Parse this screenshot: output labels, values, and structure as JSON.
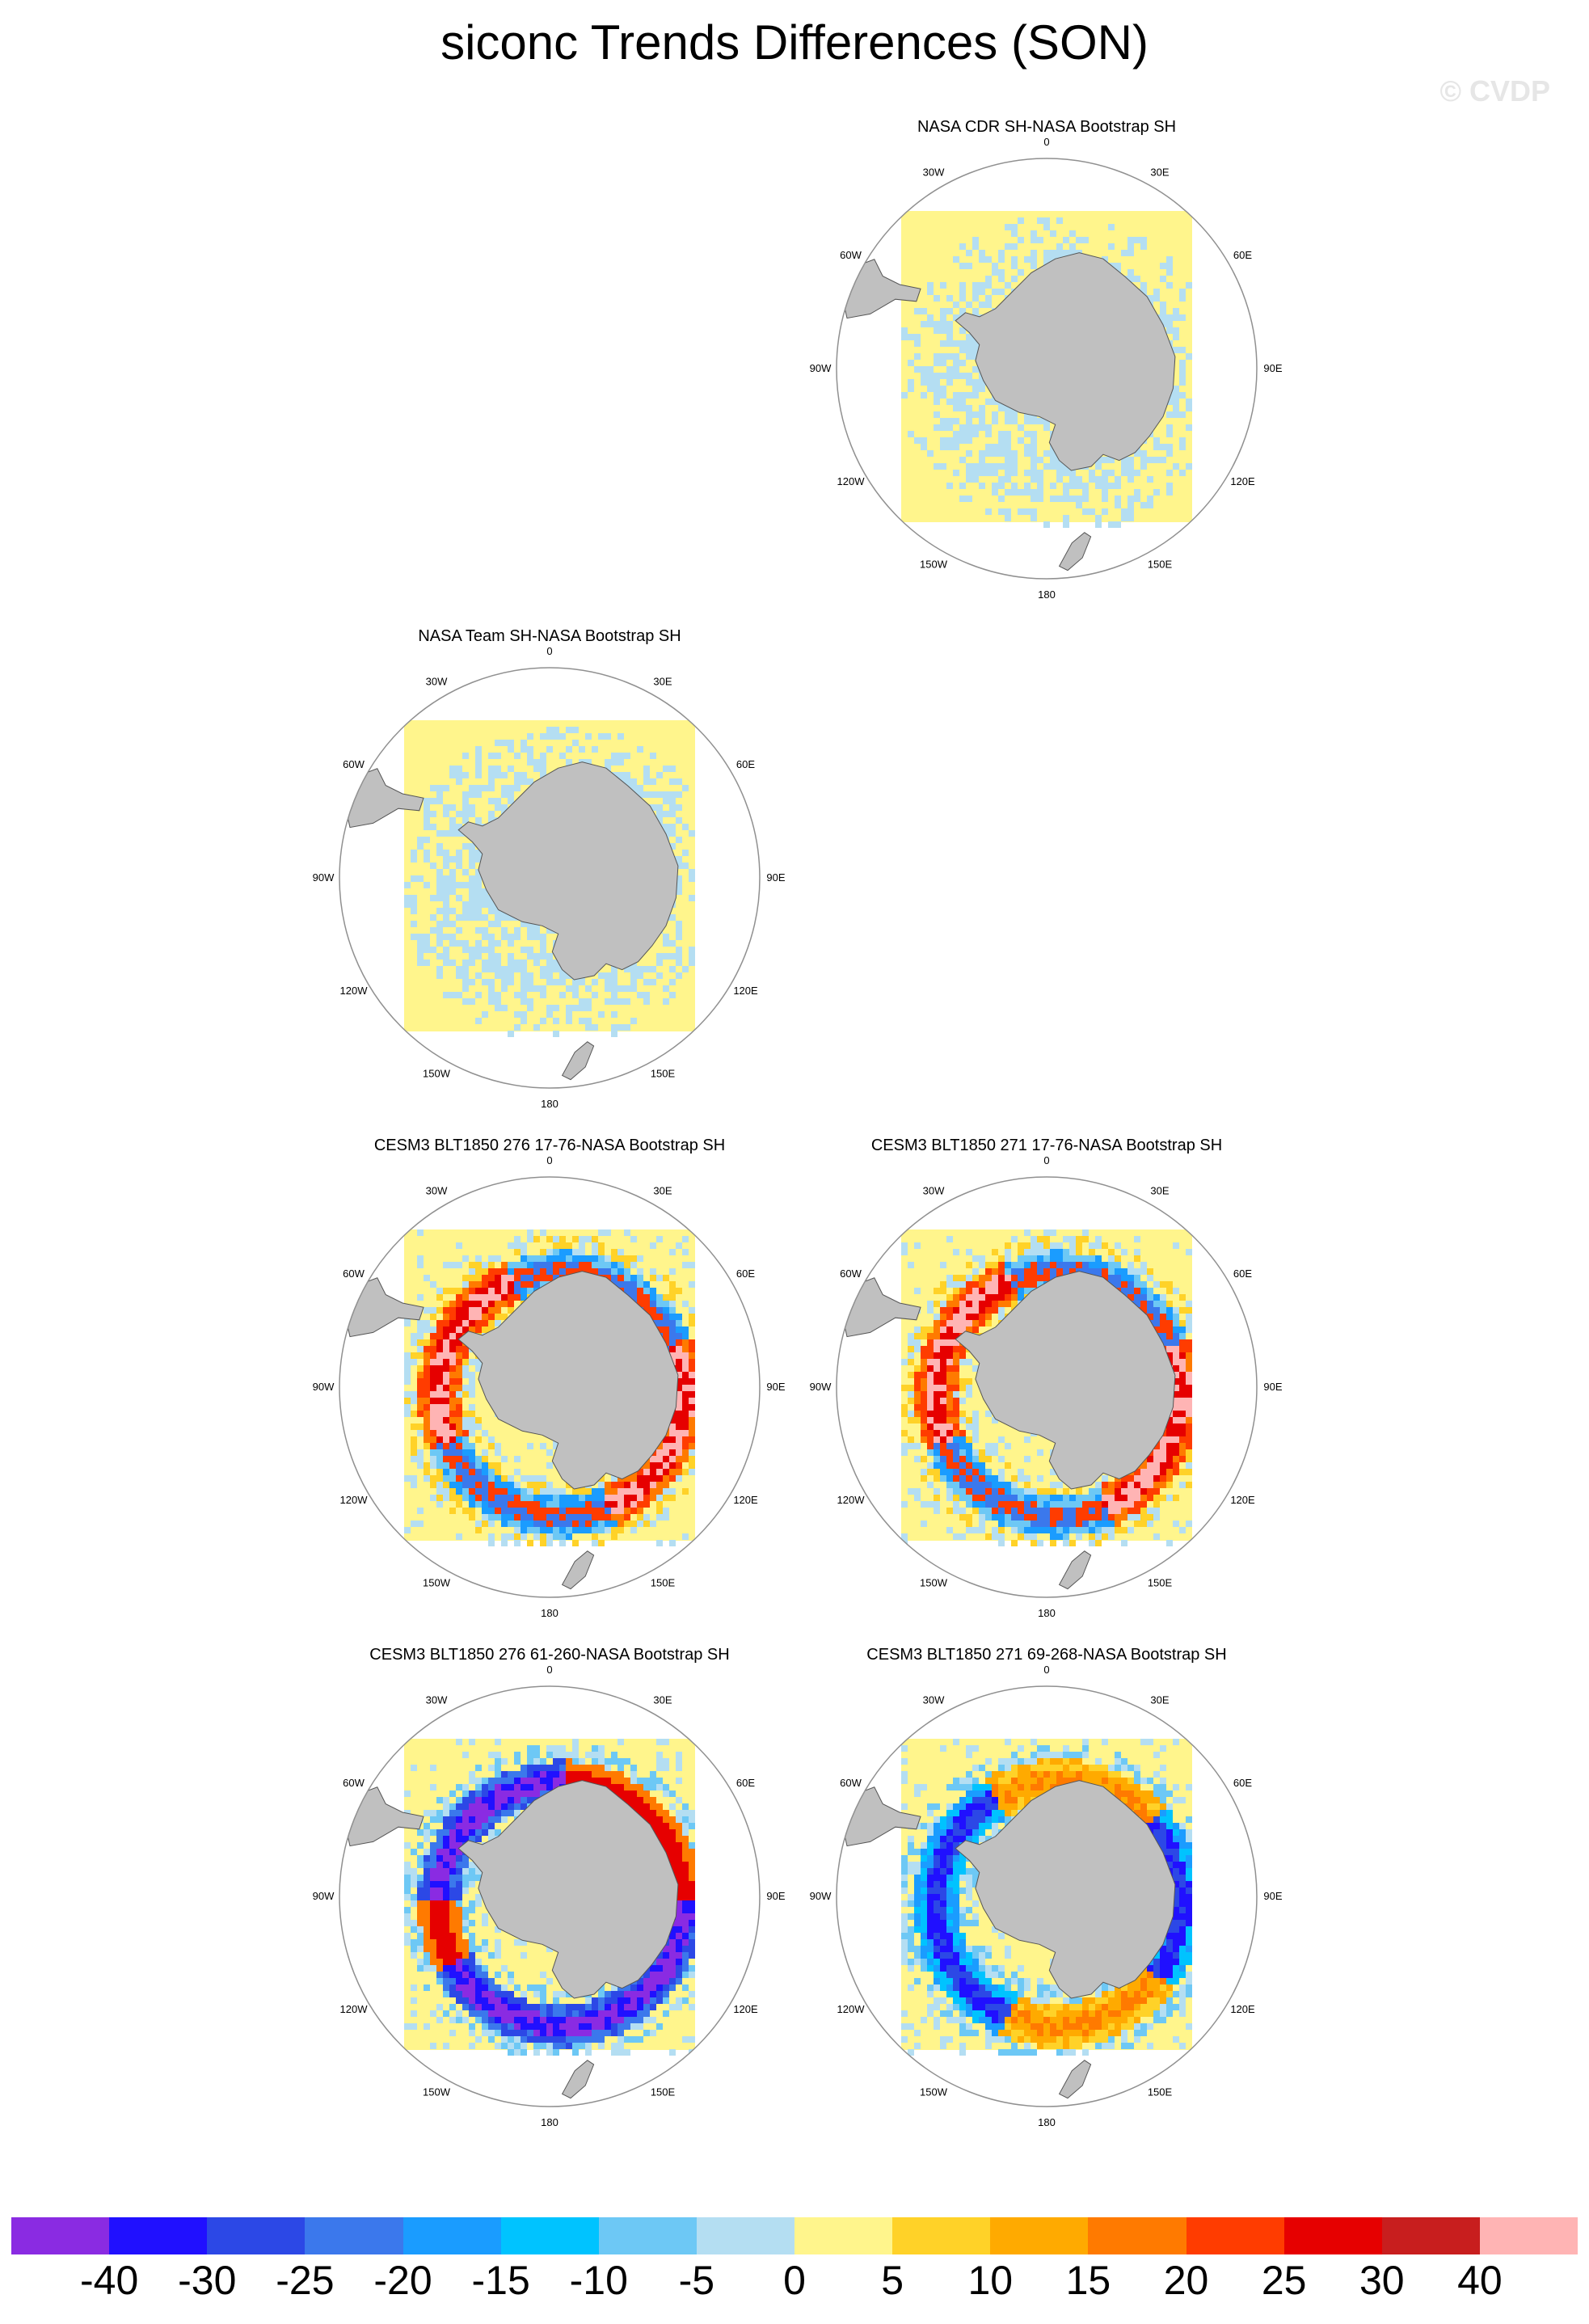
{
  "page": {
    "title": "siconc Trends Differences (SON)",
    "watermark": "© CVDP"
  },
  "panels": [
    {
      "title": "NASA CDR SH-NASA Bootstrap SH",
      "pattern": "calm",
      "seed": 3
    },
    {
      "title": "NASA Team SH-NASA Bootstrap SH",
      "pattern": "calm",
      "seed": 7
    },
    {
      "title": "CESM3 BLT1850 276 17-76-NASA Bootstrap SH",
      "pattern": "warm",
      "seed": 11
    },
    {
      "title": "CESM3 BLT1850 271 17-76-NASA Bootstrap SH",
      "pattern": "warm",
      "seed": 19
    },
    {
      "title": "CESM3 BLT1850 276 61-260-NASA Bootstrap SH",
      "pattern": "cold",
      "seed": 23
    },
    {
      "title": "CESM3 BLT1850 271 69-268-NASA Bootstrap SH",
      "pattern": "mixed",
      "seed": 29
    }
  ],
  "map_labels": {
    "top": "0",
    "upper_left": "30W",
    "upper_right": "30E",
    "left_high": "60W",
    "right_high": "60E",
    "left": "90W",
    "right": "90E",
    "left_low": "120W",
    "right_low": "120E",
    "lower_left": "150W",
    "lower_right": "150E",
    "bottom": "180"
  },
  "colorbar": {
    "colors": [
      "#8a2be2",
      "#2010ff",
      "#2c48e6",
      "#3b78ec",
      "#1a9cff",
      "#00c3ff",
      "#6dc8f5",
      "#b4def2",
      "#fff58c",
      "#ffd228",
      "#ffaa00",
      "#ff7a00",
      "#ff3c00",
      "#e60000",
      "#c81e1e",
      "#ffb4b4"
    ],
    "labels": [
      "-40",
      "-30",
      "-25",
      "-20",
      "-15",
      "-10",
      "-5",
      "0",
      "5",
      "10",
      "15",
      "20",
      "25",
      "30",
      "40"
    ]
  },
  "colors": {
    "land": "#c0c0c0",
    "background_fill": "#fff58c",
    "outline": "#909090"
  }
}
